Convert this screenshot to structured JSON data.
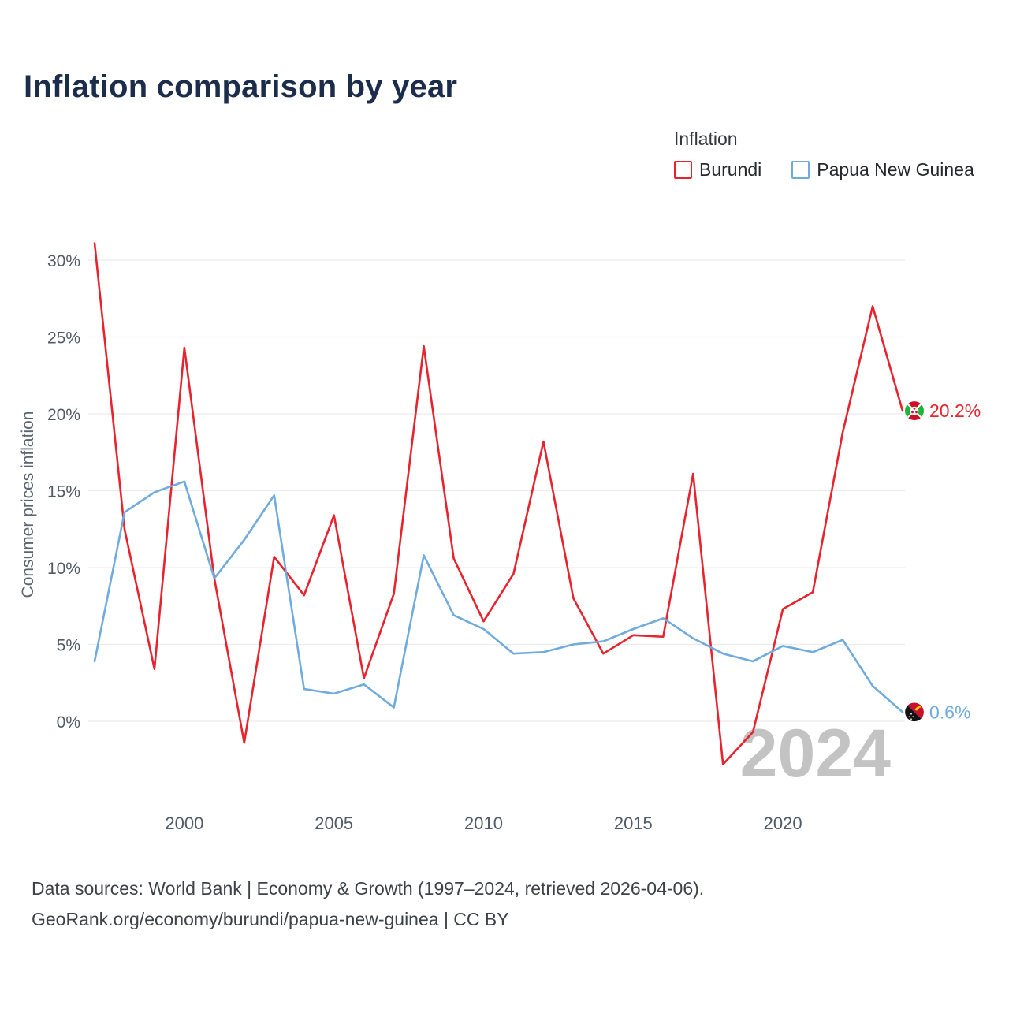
{
  "page": {
    "title": "Inflation comparison by year"
  },
  "legend": {
    "title": "Inflation",
    "items": [
      {
        "label": "Burundi",
        "color": "#e8232e"
      },
      {
        "label": "Papua New Guinea",
        "color": "#70abde"
      }
    ]
  },
  "chart_data": {
    "type": "line",
    "title": "Inflation comparison by year",
    "ylabel": "Consumer prices inflation",
    "ytick_suffix": "%",
    "grid": "horizontal",
    "legend_position": "top-right",
    "watermark": "2024",
    "ylim": [
      -5,
      32
    ],
    "x": [
      1997,
      1998,
      1999,
      2000,
      2001,
      2002,
      2003,
      2004,
      2005,
      2006,
      2007,
      2008,
      2009,
      2010,
      2011,
      2012,
      2013,
      2014,
      2015,
      2016,
      2017,
      2018,
      2019,
      2020,
      2021,
      2022,
      2023,
      2024
    ],
    "xticks": [
      2000,
      2005,
      2010,
      2015,
      2020
    ],
    "yticks": [
      0,
      5,
      10,
      15,
      20,
      25,
      30
    ],
    "series": [
      {
        "name": "Burundi",
        "flag": "burundi",
        "color": "#e8232e",
        "end_label": "20.2%",
        "values": [
          31.1,
          12.5,
          3.4,
          24.3,
          9.3,
          -1.4,
          10.7,
          8.2,
          13.4,
          2.8,
          8.3,
          24.4,
          10.6,
          6.5,
          9.6,
          18.2,
          8.0,
          4.4,
          5.6,
          5.5,
          16.1,
          -2.8,
          -0.7,
          7.3,
          8.4,
          18.8,
          27.0,
          20.2
        ]
      },
      {
        "name": "Papua New Guinea",
        "flag": "papua-new-guinea",
        "color": "#70abde",
        "end_label": "0.6%",
        "values": [
          3.9,
          13.6,
          14.9,
          15.6,
          9.3,
          11.8,
          14.7,
          2.1,
          1.8,
          2.4,
          0.9,
          10.8,
          6.9,
          6.0,
          4.4,
          4.5,
          5.0,
          5.2,
          6.0,
          6.7,
          5.4,
          4.4,
          3.9,
          4.9,
          4.5,
          5.3,
          2.3,
          0.6
        ]
      }
    ]
  },
  "footer": {
    "line1": "Data sources: World Bank | Economy & Growth (1997–2024, retrieved 2026-04-06).",
    "line2": "GeoRank.org/economy/burundi/papua-new-guinea | CC BY"
  }
}
